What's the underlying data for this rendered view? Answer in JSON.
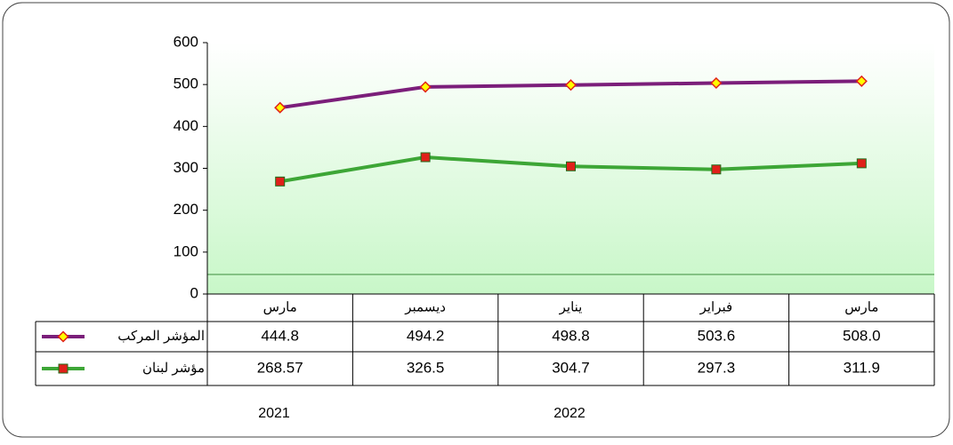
{
  "chart_data": {
    "type": "line",
    "categories": [
      "مارس",
      "ديسمبر",
      "يناير",
      "فبراير",
      "مارس"
    ],
    "series": [
      {
        "name": "المؤشر المركب",
        "color": "#7b1e7a",
        "marker": "diamond",
        "marker_color": "#ffff00",
        "marker_edge": "#e0201a",
        "values": [
          444.8,
          494.2,
          498.8,
          503.6,
          508.0
        ],
        "value_labels": [
          "444.8",
          "494.2",
          "498.8",
          "503.6",
          "508.0"
        ]
      },
      {
        "name": "مؤشر لبنان",
        "color": "#3da636",
        "marker": "square",
        "marker_color": "#e0201a",
        "marker_edge": "#1f6e1a",
        "values": [
          268.57,
          326.5,
          304.7,
          297.3,
          311.9
        ]
      }
    ],
    "ylim": [
      0,
      600
    ],
    "yticks": [
      0,
      100,
      200,
      300,
      400,
      500,
      600
    ],
    "grid": false,
    "annotations": [
      "2021",
      "2022"
    ]
  }
}
